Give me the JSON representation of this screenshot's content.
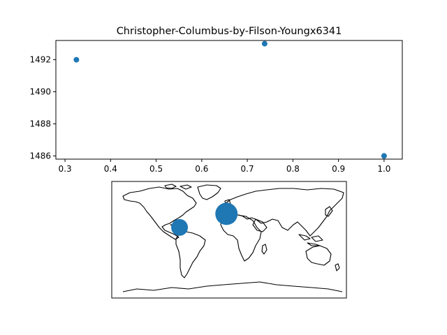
{
  "chart_data": [
    {
      "type": "scatter",
      "title": "Christopher-Columbus-by-Filson-Youngx6341",
      "xlabel": "",
      "ylabel": "",
      "x": [
        0.325,
        0.738,
        1.0
      ],
      "y": [
        1492,
        1493,
        1486
      ],
      "xlim": [
        0.28,
        1.04
      ],
      "ylim": [
        1485.8,
        1493.2
      ],
      "xticks": [
        "0.3",
        "0.4",
        "0.5",
        "0.6",
        "0.7",
        "0.8",
        "0.9",
        "1.0"
      ],
      "yticks": [
        "1486",
        "1488",
        "1490",
        "1492"
      ],
      "marker_color": "#1f77b4",
      "grid": false
    },
    {
      "type": "map",
      "projection": "equirectangular",
      "lon_range": [
        -180,
        180
      ],
      "lat_range": [
        -90,
        90
      ],
      "points": [
        {
          "lon": -76,
          "lat": 19,
          "size": "small"
        },
        {
          "lon": -4,
          "lat": 40,
          "size": "large"
        }
      ],
      "marker_color": "#1f77b4"
    }
  ]
}
